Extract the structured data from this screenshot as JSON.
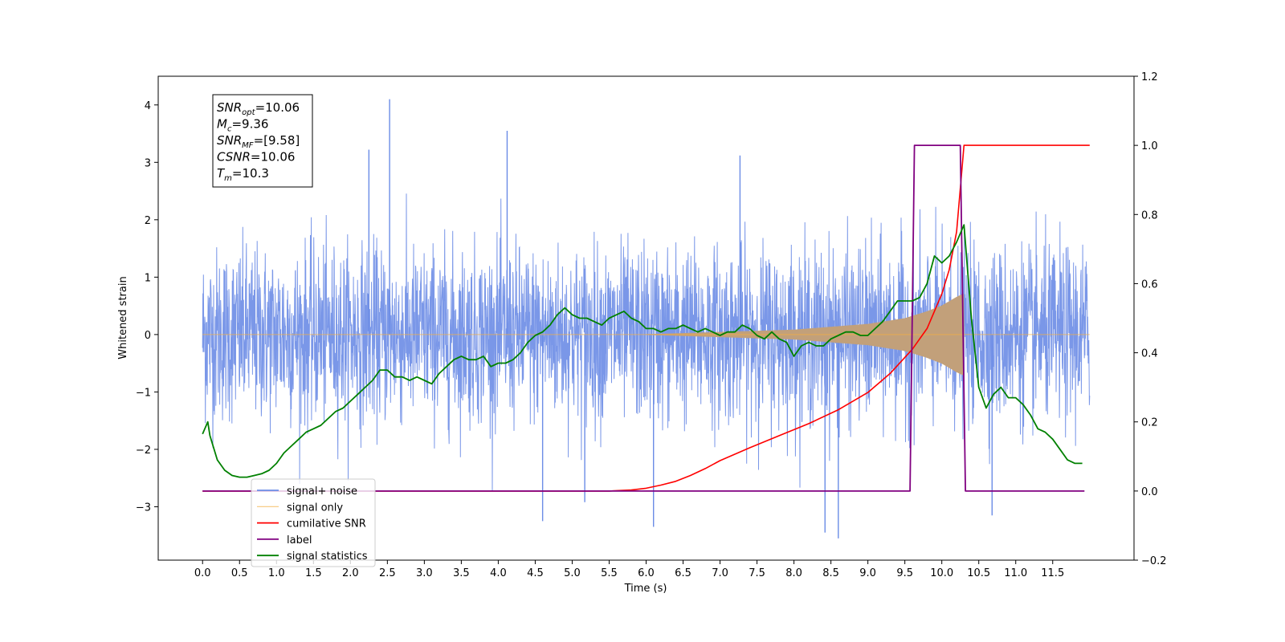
{
  "chart_data": {
    "type": "line",
    "xlabel": "Time (s)",
    "ylabel": "Whitened strain",
    "xlim": [
      -0.6,
      12.6
    ],
    "ylim": [
      -3.93,
      4.5
    ],
    "y2lim": [
      -0.2,
      1.2
    ],
    "xticks": [
      "0.0",
      "0.5",
      "1.0",
      "1.5",
      "2.0",
      "2.5",
      "3.0",
      "3.5",
      "4.0",
      "4.5",
      "5.0",
      "5.5",
      "6.0",
      "6.5",
      "7.0",
      "7.5",
      "8.0",
      "8.5",
      "9.0",
      "9.5",
      "10.0",
      "10.5",
      "11.0",
      "11.5"
    ],
    "yticks": [
      "−3",
      "−2",
      "−1",
      "0",
      "1",
      "2",
      "3",
      "4"
    ],
    "y2ticks": [
      "−0.2",
      "0.0",
      "0.2",
      "0.4",
      "0.6",
      "0.8",
      "1.0",
      "1.2"
    ],
    "legend_position": "lower-left",
    "colors": {
      "signal_noise": "#6b8ce6",
      "signal_only": "#f5b041",
      "signal_fill": "#c2a07a",
      "cumulative_snr": "#ff0000",
      "label": "#800080",
      "signal_statistics": "#008000"
    },
    "annotation": [
      {
        "base": "SNR",
        "sub": "opt",
        "value": "=10.06"
      },
      {
        "base": "M",
        "sub": "c",
        "value": "=9.36"
      },
      {
        "base": "SNR",
        "sub": "MF",
        "value": "=[9.58]"
      },
      {
        "base": "CSNR",
        "sub": "",
        "value": "=10.06"
      },
      {
        "base": "T",
        "sub": "m",
        "value": "=10.3"
      }
    ],
    "series": [
      {
        "name": "signal+ noise",
        "axis": "left",
        "style": "noise",
        "envelope_std": 0.75,
        "peaks": [
          [
            2.53,
            4.1
          ],
          [
            4.12,
            3.55
          ],
          [
            2.25,
            3.22
          ],
          [
            7.27,
            3.12
          ],
          [
            8.6,
            -3.55
          ],
          [
            8.42,
            -3.45
          ],
          [
            10.68,
            -3.15
          ],
          [
            4.6,
            -3.25
          ],
          [
            6.1,
            -3.35
          ],
          [
            5.17,
            -2.92
          ]
        ]
      },
      {
        "name": "signal only",
        "axis": "left",
        "style": "chirp",
        "amplitude_at": [
          [
            0.0,
            0.0
          ],
          [
            6.0,
            0.0
          ],
          [
            8.0,
            0.08
          ],
          [
            9.0,
            0.18
          ],
          [
            9.5,
            0.28
          ],
          [
            9.8,
            0.4
          ],
          [
            10.0,
            0.5
          ],
          [
            10.2,
            0.65
          ],
          [
            10.28,
            0.7
          ]
        ],
        "merger": 10.3
      },
      {
        "name": "cumilative SNR",
        "axis": "right",
        "x": [
          0.0,
          5.5,
          5.8,
          6.0,
          6.2,
          6.4,
          6.6,
          6.8,
          7.0,
          7.4,
          7.8,
          8.2,
          8.6,
          9.0,
          9.3,
          9.6,
          9.8,
          10.0,
          10.1,
          10.2,
          10.3,
          12.0
        ],
        "y": [
          0.0,
          0.0,
          0.003,
          0.008,
          0.017,
          0.028,
          0.045,
          0.065,
          0.088,
          0.125,
          0.16,
          0.195,
          0.235,
          0.285,
          0.34,
          0.41,
          0.47,
          0.57,
          0.64,
          0.75,
          1.0,
          1.0
        ]
      },
      {
        "name": "label",
        "axis": "right",
        "x": [
          0.0,
          9.57,
          9.63,
          10.25,
          10.32,
          11.93
        ],
        "y": [
          0.0,
          0.0,
          1.0,
          1.0,
          0.0,
          0.0
        ]
      },
      {
        "name": "signal statistics",
        "axis": "right",
        "x": [
          0.0,
          0.07,
          0.1,
          0.2,
          0.3,
          0.4,
          0.5,
          0.6,
          0.7,
          0.8,
          0.9,
          1.0,
          1.1,
          1.2,
          1.3,
          1.4,
          1.5,
          1.6,
          1.7,
          1.8,
          1.9,
          2.0,
          2.1,
          2.2,
          2.3,
          2.4,
          2.5,
          2.6,
          2.7,
          2.8,
          2.9,
          3.0,
          3.1,
          3.2,
          3.3,
          3.4,
          3.5,
          3.6,
          3.7,
          3.8,
          3.9,
          4.0,
          4.1,
          4.2,
          4.3,
          4.4,
          4.5,
          4.6,
          4.7,
          4.8,
          4.9,
          5.0,
          5.1,
          5.2,
          5.3,
          5.4,
          5.5,
          5.6,
          5.7,
          5.8,
          5.9,
          6.0,
          6.1,
          6.2,
          6.3,
          6.4,
          6.5,
          6.6,
          6.7,
          6.8,
          6.9,
          7.0,
          7.1,
          7.2,
          7.3,
          7.4,
          7.5,
          7.6,
          7.7,
          7.8,
          7.9,
          8.0,
          8.1,
          8.2,
          8.3,
          8.4,
          8.5,
          8.6,
          8.7,
          8.8,
          8.9,
          9.0,
          9.1,
          9.2,
          9.3,
          9.4,
          9.5,
          9.6,
          9.7,
          9.8,
          9.9,
          10.0,
          10.1,
          10.2,
          10.3,
          10.4,
          10.5,
          10.6,
          10.7,
          10.8,
          10.9,
          11.0,
          11.1,
          11.2,
          11.3,
          11.4,
          11.5,
          11.6,
          11.7,
          11.8,
          11.9
        ],
        "y": [
          0.165,
          0.2,
          0.16,
          0.09,
          0.06,
          0.045,
          0.04,
          0.04,
          0.045,
          0.05,
          0.06,
          0.08,
          0.11,
          0.13,
          0.15,
          0.17,
          0.18,
          0.19,
          0.21,
          0.23,
          0.24,
          0.26,
          0.28,
          0.3,
          0.32,
          0.35,
          0.35,
          0.33,
          0.33,
          0.32,
          0.33,
          0.32,
          0.31,
          0.34,
          0.36,
          0.38,
          0.39,
          0.38,
          0.38,
          0.39,
          0.36,
          0.37,
          0.37,
          0.38,
          0.4,
          0.43,
          0.45,
          0.46,
          0.48,
          0.51,
          0.53,
          0.51,
          0.5,
          0.5,
          0.49,
          0.48,
          0.5,
          0.51,
          0.52,
          0.5,
          0.49,
          0.47,
          0.47,
          0.46,
          0.47,
          0.47,
          0.48,
          0.47,
          0.46,
          0.47,
          0.46,
          0.45,
          0.46,
          0.46,
          0.48,
          0.47,
          0.45,
          0.44,
          0.46,
          0.44,
          0.43,
          0.39,
          0.42,
          0.43,
          0.42,
          0.42,
          0.44,
          0.45,
          0.46,
          0.46,
          0.45,
          0.45,
          0.47,
          0.49,
          0.52,
          0.55,
          0.55,
          0.55,
          0.56,
          0.6,
          0.68,
          0.66,
          0.68,
          0.72,
          0.77,
          0.5,
          0.3,
          0.24,
          0.28,
          0.3,
          0.27,
          0.27,
          0.25,
          0.22,
          0.18,
          0.17,
          0.15,
          0.12,
          0.09,
          0.08,
          0.08
        ]
      }
    ]
  }
}
